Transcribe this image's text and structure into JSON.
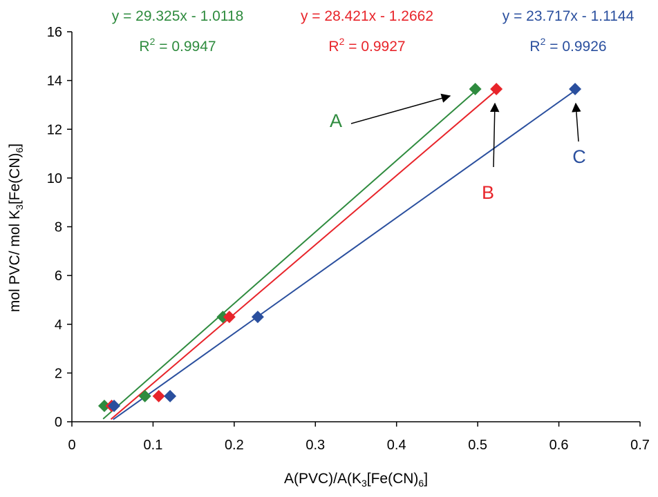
{
  "chart_data": {
    "type": "scatter",
    "xlabel": {
      "pre": "A(PVC)/A(K",
      "sub1": "3",
      "mid": "[Fe(CN)",
      "sub2": "6",
      "post": "]"
    },
    "ylabel": {
      "pre": "mol PVC/ mol K",
      "sub1": "3",
      "mid": "[Fe(CN)",
      "sub2": "6",
      "post": "]"
    },
    "xlim": [
      0,
      0.7
    ],
    "ylim": [
      0,
      16
    ],
    "xticks": [
      "0",
      "0.1",
      "0.2",
      "0.3",
      "0.4",
      "0.5",
      "0.6",
      "0.7"
    ],
    "yticks": [
      "0",
      "2",
      "4",
      "6",
      "8",
      "10",
      "12",
      "14",
      "16"
    ],
    "grid": false,
    "series": [
      {
        "name": "A",
        "color": "#2e8b3e",
        "marker": "diamond",
        "points": [
          [
            0.04,
            0.65
          ],
          [
            0.09,
            1.05
          ],
          [
            0.186,
            4.3
          ],
          [
            0.497,
            13.65
          ]
        ],
        "trendline": {
          "slope": 29.325,
          "intercept": -1.0118,
          "x_range": [
            0.0385,
            0.497
          ]
        },
        "equation": "y = 29.325x - 1.0118",
        "r2_prefix": "R",
        "r2_sup": "2",
        "r2_value": " = 0.9947"
      },
      {
        "name": "B",
        "color": "#e8242a",
        "marker": "diamond",
        "points": [
          [
            0.049,
            0.65
          ],
          [
            0.107,
            1.05
          ],
          [
            0.194,
            4.3
          ],
          [
            0.523,
            13.65
          ]
        ],
        "trendline": {
          "slope": 28.421,
          "intercept": -1.2662,
          "x_range": [
            0.0481,
            0.523
          ]
        },
        "equation": "y = 28.421x - 1.2662",
        "r2_prefix": "R",
        "r2_sup": "2",
        "r2_value": " = 0.9927"
      },
      {
        "name": "C",
        "color": "#2a4f9e",
        "marker": "diamond",
        "points": [
          [
            0.052,
            0.65
          ],
          [
            0.121,
            1.05
          ],
          [
            0.229,
            4.3
          ],
          [
            0.62,
            13.65
          ]
        ],
        "trendline": {
          "slope": 23.717,
          "intercept": -1.1144,
          "x_range": [
            0.0509,
            0.62
          ]
        },
        "equation": "y = 23.717x - 1.1144",
        "r2_prefix": "R",
        "r2_sup": "2",
        "r2_value": " = 0.9926"
      }
    ]
  }
}
